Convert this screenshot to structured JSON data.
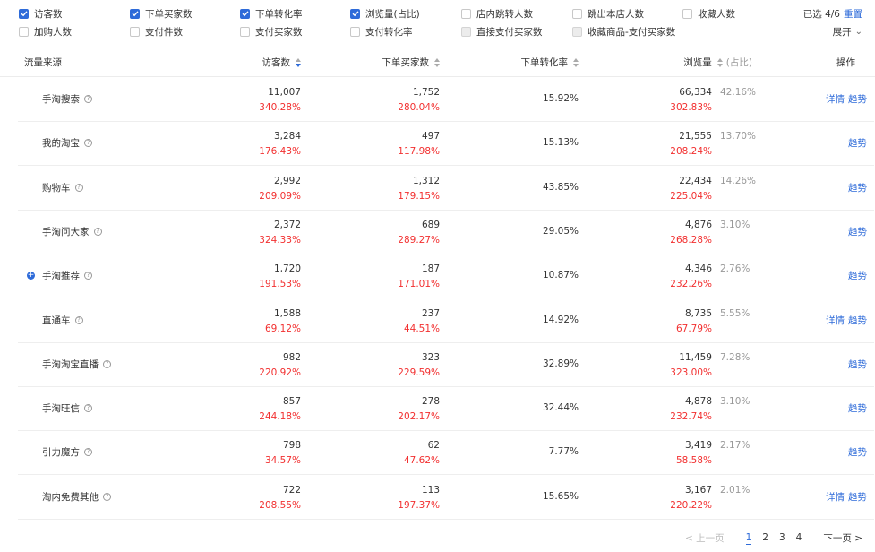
{
  "metrics": {
    "row1": [
      {
        "label": "访客数",
        "state": "checked"
      },
      {
        "label": "下单买家数",
        "state": "checked"
      },
      {
        "label": "下单转化率",
        "state": "checked"
      },
      {
        "label": "浏览量(占比)",
        "state": "checked"
      },
      {
        "label": "店内跳转人数",
        "state": "unchecked"
      },
      {
        "label": "跳出本店人数",
        "state": "unchecked"
      },
      {
        "label": "收藏人数",
        "state": "unchecked"
      }
    ],
    "row2": [
      {
        "label": "加购人数",
        "state": "unchecked"
      },
      {
        "label": "支付件数",
        "state": "unchecked"
      },
      {
        "label": "支付买家数",
        "state": "unchecked"
      },
      {
        "label": "支付转化率",
        "state": "unchecked"
      },
      {
        "label": "直接支付买家数",
        "state": "disabled"
      },
      {
        "label": "收藏商品-支付买家数",
        "state": "disabled"
      }
    ],
    "selected_text": "已选 4/6",
    "reset_label": "重置",
    "expand_label": "展开",
    "check_color": "#2e6bd9"
  },
  "table": {
    "headers": {
      "source": "流量来源",
      "visitors": "访客数",
      "buyers": "下单买家数",
      "cvr": "下单转化率",
      "pv": "浏览量",
      "pv_share": "(占比)",
      "ops": "操作"
    },
    "rows": [
      {
        "source": "手淘搜索",
        "visitors": "11,007",
        "visitors_rate": "340.28%",
        "buyers": "1,752",
        "buyers_rate": "280.04%",
        "cvr": "15.92%",
        "pv": "66,334",
        "pv_rate": "302.83%",
        "share": "42.16%",
        "detail": "详情",
        "trend": "趋势"
      },
      {
        "source": "我的淘宝",
        "visitors": "3,284",
        "visitors_rate": "176.43%",
        "buyers": "497",
        "buyers_rate": "117.98%",
        "cvr": "15.13%",
        "pv": "21,555",
        "pv_rate": "208.24%",
        "share": "13.70%",
        "detail": "",
        "trend": "趋势"
      },
      {
        "source": "购物车",
        "visitors": "2,992",
        "visitors_rate": "209.09%",
        "buyers": "1,312",
        "buyers_rate": "179.15%",
        "cvr": "43.85%",
        "pv": "22,434",
        "pv_rate": "225.04%",
        "share": "14.26%",
        "detail": "",
        "trend": "趋势"
      },
      {
        "source": "手淘问大家",
        "visitors": "2,372",
        "visitors_rate": "324.33%",
        "buyers": "689",
        "buyers_rate": "289.27%",
        "cvr": "29.05%",
        "pv": "4,876",
        "pv_rate": "268.28%",
        "share": "3.10%",
        "detail": "",
        "trend": "趋势"
      },
      {
        "source": "手淘推荐",
        "visitors": "1,720",
        "visitors_rate": "191.53%",
        "buyers": "187",
        "buyers_rate": "171.01%",
        "cvr": "10.87%",
        "pv": "4,346",
        "pv_rate": "232.26%",
        "share": "2.76%",
        "detail": "",
        "trend": "趋势",
        "expandable": true
      },
      {
        "source": "直通车",
        "visitors": "1,588",
        "visitors_rate": "69.12%",
        "buyers": "237",
        "buyers_rate": "44.51%",
        "cvr": "14.92%",
        "pv": "8,735",
        "pv_rate": "67.79%",
        "share": "5.55%",
        "detail": "详情",
        "trend": "趋势"
      },
      {
        "source": "手淘淘宝直播",
        "visitors": "982",
        "visitors_rate": "220.92%",
        "buyers": "323",
        "buyers_rate": "229.59%",
        "cvr": "32.89%",
        "pv": "11,459",
        "pv_rate": "323.00%",
        "share": "7.28%",
        "detail": "",
        "trend": "趋势"
      },
      {
        "source": "手淘旺信",
        "visitors": "857",
        "visitors_rate": "244.18%",
        "buyers": "278",
        "buyers_rate": "202.17%",
        "cvr": "32.44%",
        "pv": "4,878",
        "pv_rate": "232.74%",
        "share": "3.10%",
        "detail": "",
        "trend": "趋势"
      },
      {
        "source": "引力魔方",
        "visitors": "798",
        "visitors_rate": "34.57%",
        "buyers": "62",
        "buyers_rate": "47.62%",
        "cvr": "7.77%",
        "pv": "3,419",
        "pv_rate": "58.58%",
        "share": "2.17%",
        "detail": "",
        "trend": "趋势"
      },
      {
        "source": "淘内免费其他",
        "visitors": "722",
        "visitors_rate": "208.55%",
        "buyers": "113",
        "buyers_rate": "197.37%",
        "cvr": "15.65%",
        "pv": "3,167",
        "pv_rate": "220.22%",
        "share": "2.01%",
        "detail": "详情",
        "trend": "趋势"
      }
    ]
  },
  "pagination": {
    "prev_label": "< 上一页",
    "pages": [
      "1",
      "2",
      "3",
      "4"
    ],
    "current": "1",
    "next_label": "下一页 >"
  },
  "colors": {
    "accent": "#2e6bd9",
    "increase_red": "#f23030"
  }
}
